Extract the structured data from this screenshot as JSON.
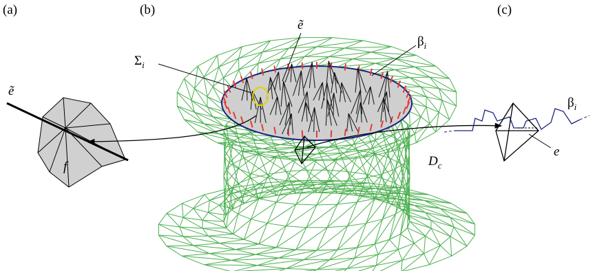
{
  "panel_a": {
    "label": "(a)",
    "edge_label": "ẽ",
    "face_label": "f"
  },
  "panel_b": {
    "label": "(b)",
    "edge_label": "ẽ",
    "surface_label": {
      "main": "Σ",
      "sub": "i"
    },
    "boundary_label": {
      "main": "β",
      "sub": "i"
    },
    "region_label": {
      "main": "D",
      "sub": "c"
    }
  },
  "panel_c": {
    "label": "(c)",
    "boundary_label": {
      "main": "β",
      "sub": "i"
    },
    "edge_label": "e"
  }
}
